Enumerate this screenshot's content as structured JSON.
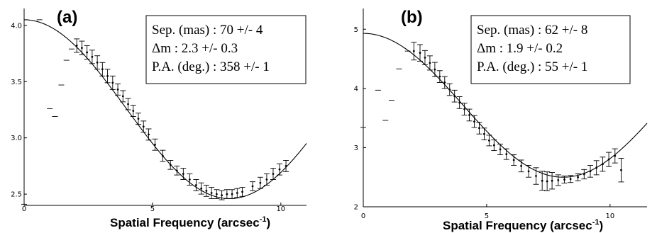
{
  "chart_data": [
    {
      "type": "scatter",
      "panel_label": "(a)",
      "xlabel": "Spatial Frequency (arcsec",
      "xlabel_sup": "-1",
      "xlabel_close": ")",
      "ylabel": "",
      "xlim": [
        0,
        11
      ],
      "ylim": [
        2.4,
        4.15
      ],
      "x_ticks": [
        "0",
        "5",
        "10"
      ],
      "y_ticks": [
        "2.5",
        "3.0",
        "3.5",
        "4.0"
      ],
      "info": [
        "Sep. (mas) : 70 +/- 4",
        "Δm : 2.3 +/- 0.3",
        "P.A. (deg.) : 358 +/- 1"
      ],
      "model": {
        "mean": 3.255,
        "amplitude": 0.795,
        "x_min": 8.0
      },
      "series": [
        {
          "style": "flat-markers",
          "points": [
            [
              0.0,
              2.41
            ],
            [
              0.6,
              4.05
            ],
            [
              1.0,
              3.26
            ],
            [
              1.2,
              3.19
            ],
            [
              1.45,
              3.47
            ],
            [
              1.65,
              3.69
            ],
            [
              1.85,
              3.79
            ]
          ]
        },
        {
          "style": "points-with-errorbars",
          "points": [
            [
              2.05,
              3.82,
              0.06
            ],
            [
              2.25,
              3.8,
              0.06
            ],
            [
              2.45,
              3.76,
              0.06
            ],
            [
              2.65,
              3.72,
              0.06
            ],
            [
              2.85,
              3.67,
              0.06
            ],
            [
              3.05,
              3.61,
              0.06
            ],
            [
              3.25,
              3.55,
              0.06
            ],
            [
              3.45,
              3.49,
              0.06
            ],
            [
              3.65,
              3.43,
              0.05
            ],
            [
              3.85,
              3.37,
              0.05
            ],
            [
              4.05,
              3.3,
              0.05
            ],
            [
              4.25,
              3.24,
              0.05
            ],
            [
              4.45,
              3.17,
              0.05
            ],
            [
              4.65,
              3.1,
              0.05
            ],
            [
              4.85,
              3.03,
              0.05
            ],
            [
              5.1,
              2.94,
              0.05
            ],
            [
              5.4,
              2.84,
              0.05
            ],
            [
              5.7,
              2.76,
              0.04
            ],
            [
              5.95,
              2.71,
              0.04
            ],
            [
              6.2,
              2.68,
              0.05
            ],
            [
              6.45,
              2.63,
              0.05
            ],
            [
              6.7,
              2.58,
              0.05
            ],
            [
              6.9,
              2.55,
              0.05
            ],
            [
              7.1,
              2.53,
              0.05
            ],
            [
              7.3,
              2.51,
              0.05
            ],
            [
              7.5,
              2.5,
              0.04
            ],
            [
              7.7,
              2.49,
              0.04
            ],
            [
              7.9,
              2.5,
              0.04
            ],
            [
              8.1,
              2.5,
              0.04
            ],
            [
              8.3,
              2.51,
              0.04
            ],
            [
              8.5,
              2.52,
              0.04
            ],
            [
              8.9,
              2.57,
              0.04
            ],
            [
              9.2,
              2.6,
              0.05
            ],
            [
              9.45,
              2.63,
              0.05
            ],
            [
              9.7,
              2.68,
              0.05
            ],
            [
              9.95,
              2.72,
              0.05
            ],
            [
              10.2,
              2.75,
              0.05
            ]
          ]
        }
      ]
    },
    {
      "type": "scatter",
      "panel_label": "(b)",
      "xlabel": "Spatial Frequency (arcsec",
      "xlabel_sup": "-1",
      "xlabel_close": ")",
      "ylabel": "",
      "xlim": [
        0,
        11.5
      ],
      "ylim": [
        2.0,
        5.35
      ],
      "x_ticks": [
        "0",
        "5",
        "10"
      ],
      "y_ticks": [
        "2",
        "3",
        "4",
        "5"
      ],
      "info": [
        "Sep. (mas) : 62 +/- 8",
        "Δm : 1.9 +/- 0.2",
        "P.A. (deg.) : 55 +/- 1"
      ],
      "model": {
        "mean": 3.715,
        "amplitude": 1.215,
        "x_min": 8.1
      },
      "series": [
        {
          "style": "flat-markers",
          "points": [
            [
              0.0,
              3.34
            ],
            [
              0.6,
              3.97
            ],
            [
              0.9,
              3.46
            ],
            [
              1.15,
              3.8
            ],
            [
              1.45,
              4.33
            ],
            [
              1.8,
              4.63
            ]
          ]
        },
        {
          "style": "points-with-errorbars",
          "points": [
            [
              2.05,
              4.63,
              0.15
            ],
            [
              2.3,
              4.6,
              0.14
            ],
            [
              2.5,
              4.52,
              0.12
            ],
            [
              2.7,
              4.43,
              0.12
            ],
            [
              2.9,
              4.32,
              0.12
            ],
            [
              3.1,
              4.2,
              0.1
            ],
            [
              3.3,
              4.1,
              0.1
            ],
            [
              3.5,
              3.98,
              0.1
            ],
            [
              3.7,
              3.87,
              0.1
            ],
            [
              3.9,
              3.76,
              0.1
            ],
            [
              4.1,
              3.65,
              0.1
            ],
            [
              4.3,
              3.55,
              0.1
            ],
            [
              4.5,
              3.44,
              0.1
            ],
            [
              4.7,
              3.33,
              0.1
            ],
            [
              4.9,
              3.23,
              0.1
            ],
            [
              5.1,
              3.12,
              0.09
            ],
            [
              5.3,
              3.04,
              0.09
            ],
            [
              5.55,
              2.97,
              0.09
            ],
            [
              5.8,
              2.89,
              0.09
            ],
            [
              6.1,
              2.79,
              0.09
            ],
            [
              6.4,
              2.69,
              0.1
            ],
            [
              6.7,
              2.6,
              0.1
            ],
            [
              7.0,
              2.52,
              0.14
            ],
            [
              7.25,
              2.44,
              0.16
            ],
            [
              7.45,
              2.43,
              0.16
            ],
            [
              7.65,
              2.44,
              0.14
            ],
            [
              7.9,
              2.45,
              0.09
            ],
            [
              8.15,
              2.46,
              0.06
            ],
            [
              8.4,
              2.47,
              0.06
            ],
            [
              8.7,
              2.5,
              0.06
            ],
            [
              8.95,
              2.55,
              0.08
            ],
            [
              9.2,
              2.6,
              0.1
            ],
            [
              9.45,
              2.66,
              0.12
            ],
            [
              9.7,
              2.72,
              0.12
            ],
            [
              9.95,
              2.8,
              0.12
            ],
            [
              10.2,
              2.86,
              0.12
            ],
            [
              10.45,
              2.62,
              0.2
            ]
          ]
        }
      ]
    }
  ]
}
